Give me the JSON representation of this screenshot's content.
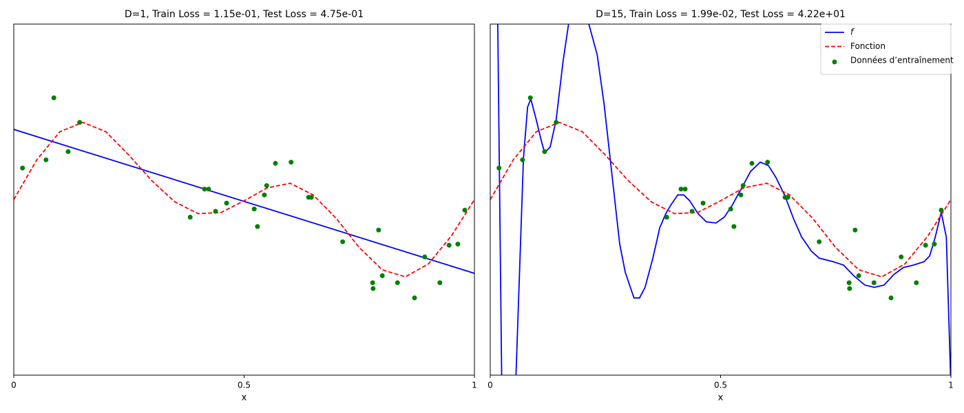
{
  "chart_data": [
    {
      "type": "line",
      "title": "D=1, Train Loss = 1.15e-01, Test Loss = 4.75e-01",
      "xlabel": "x",
      "xlim": [
        0,
        1
      ],
      "ylim": [
        -1.5,
        1.5
      ],
      "xticks": [
        0,
        0.5,
        1
      ],
      "series": [
        {
          "type": "line",
          "color": "#0000ff",
          "x": [
            0,
            1
          ],
          "values": [
            0.6,
            -0.63
          ]
        },
        {
          "type": "line",
          "dashed": true,
          "color": "#ff0000",
          "x": [
            0,
            0.05,
            0.1,
            0.15,
            0.2,
            0.25,
            0.3,
            0.35,
            0.4,
            0.45,
            0.5,
            0.55,
            0.6,
            0.65,
            0.7,
            0.75,
            0.8,
            0.85,
            0.9,
            0.95,
            1
          ],
          "values": [
            0,
            0.34,
            0.58,
            0.66,
            0.58,
            0.38,
            0.16,
            -0.02,
            -0.12,
            -0.11,
            -0.01,
            0.1,
            0.14,
            0.04,
            -0.16,
            -0.41,
            -0.6,
            -0.66,
            -0.55,
            -0.31,
            0
          ]
        },
        {
          "type": "scatter",
          "color": "#008000",
          "x": [
            0.019,
            0.07,
            0.087,
            0.118,
            0.143,
            0.383,
            0.414,
            0.423,
            0.438,
            0.462,
            0.522,
            0.529,
            0.544,
            0.549,
            0.568,
            0.602,
            0.64,
            0.646,
            0.714,
            0.792,
            0.779,
            0.78,
            0.8,
            0.833,
            0.87,
            0.892,
            0.925,
            0.945,
            0.964,
            0.979
          ],
          "values": [
            0.27,
            0.34,
            0.87,
            0.41,
            0.66,
            -0.15,
            0.09,
            0.09,
            -0.1,
            -0.03,
            -0.08,
            -0.23,
            0.04,
            0.12,
            0.31,
            0.32,
            0.02,
            0.02,
            -0.36,
            -0.26,
            -0.71,
            -0.76,
            -0.65,
            -0.71,
            -0.84,
            -0.49,
            -0.71,
            -0.39,
            -0.38,
            -0.09
          ]
        }
      ]
    },
    {
      "type": "line",
      "title": "D=15, Train Loss = 1.99e-02, Test Loss = 4.22e+01",
      "xlabel": "x",
      "xlim": [
        0,
        1
      ],
      "ylim": [
        -1.5,
        1.5
      ],
      "xticks": [
        0,
        0.5,
        1
      ],
      "legend": "upper right",
      "series": [
        {
          "name": "f",
          "type": "line",
          "color": "#0000ff",
          "x": [
            0.016,
            0.025,
            0.055,
            0.072,
            0.081,
            0.088,
            0.1,
            0.111,
            0.118,
            0.13,
            0.143,
            0.158,
            0.17,
            0.19,
            0.214,
            0.232,
            0.247,
            0.262,
            0.281,
            0.293,
            0.305,
            0.312,
            0.324,
            0.336,
            0.353,
            0.368,
            0.381,
            0.393,
            0.407,
            0.42,
            0.433,
            0.451,
            0.469,
            0.49,
            0.508,
            0.525,
            0.543,
            0.565,
            0.586,
            0.604,
            0.62,
            0.64,
            0.658,
            0.676,
            0.697,
            0.714,
            0.744,
            0.767,
            0.789,
            0.813,
            0.834,
            0.855,
            0.876,
            0.897,
            0.918,
            0.942,
            0.954,
            0.966,
            0.979,
            0.99,
            1
          ],
          "values": [
            1.6,
            -1.6,
            -1.6,
            0.35,
            0.79,
            0.86,
            0.68,
            0.5,
            0.4,
            0.45,
            0.68,
            1.18,
            1.5,
            1.9,
            1.5,
            1.24,
            0.82,
            0.29,
            -0.38,
            -0.62,
            -0.76,
            -0.84,
            -0.84,
            -0.75,
            -0.5,
            -0.24,
            -0.12,
            -0.04,
            0.04,
            0.04,
            -0.01,
            -0.12,
            -0.19,
            -0.2,
            -0.15,
            -0.05,
            0.08,
            0.24,
            0.32,
            0.29,
            0.19,
            0.03,
            -0.16,
            -0.32,
            -0.44,
            -0.5,
            -0.53,
            -0.56,
            -0.65,
            -0.73,
            -0.75,
            -0.73,
            -0.64,
            -0.58,
            -0.56,
            -0.53,
            -0.48,
            -0.32,
            -0.11,
            -0.32,
            -1.6
          ]
        },
        {
          "name": "Fonction",
          "type": "line",
          "dashed": true,
          "color": "#ff0000",
          "x": [
            0,
            0.05,
            0.1,
            0.15,
            0.2,
            0.25,
            0.3,
            0.35,
            0.4,
            0.45,
            0.5,
            0.55,
            0.6,
            0.65,
            0.7,
            0.75,
            0.8,
            0.85,
            0.9,
            0.95,
            1
          ],
          "values": [
            0,
            0.34,
            0.58,
            0.66,
            0.58,
            0.38,
            0.16,
            -0.02,
            -0.12,
            -0.11,
            -0.01,
            0.1,
            0.14,
            0.04,
            -0.16,
            -0.41,
            -0.6,
            -0.66,
            -0.55,
            -0.31,
            0
          ]
        },
        {
          "name": "Données d’entraînement",
          "type": "scatter",
          "color": "#008000",
          "x": [
            0.019,
            0.07,
            0.087,
            0.118,
            0.143,
            0.383,
            0.414,
            0.423,
            0.438,
            0.462,
            0.522,
            0.529,
            0.544,
            0.549,
            0.568,
            0.602,
            0.64,
            0.646,
            0.714,
            0.792,
            0.779,
            0.78,
            0.8,
            0.833,
            0.87,
            0.892,
            0.925,
            0.945,
            0.964,
            0.979
          ],
          "values": [
            0.27,
            0.34,
            0.87,
            0.41,
            0.66,
            -0.15,
            0.09,
            0.09,
            -0.1,
            -0.03,
            -0.08,
            -0.23,
            0.04,
            0.12,
            0.31,
            0.32,
            0.02,
            0.02,
            -0.36,
            -0.26,
            -0.71,
            -0.76,
            -0.65,
            -0.71,
            -0.84,
            -0.49,
            -0.71,
            -0.39,
            -0.38,
            -0.09
          ]
        }
      ]
    }
  ]
}
